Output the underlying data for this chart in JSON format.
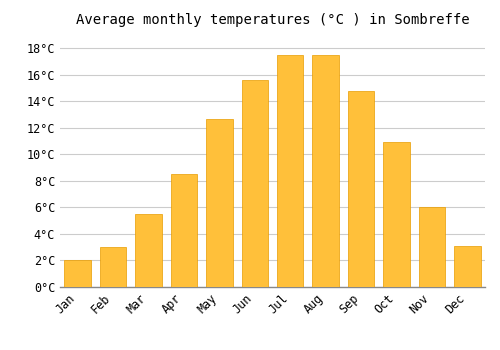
{
  "title": "Average monthly temperatures (°C ) in Sombreffe",
  "months": [
    "Jan",
    "Feb",
    "Mar",
    "Apr",
    "May",
    "Jun",
    "Jul",
    "Aug",
    "Sep",
    "Oct",
    "Nov",
    "Dec"
  ],
  "values": [
    2.0,
    3.0,
    5.5,
    8.5,
    12.7,
    15.6,
    17.5,
    17.5,
    14.8,
    10.9,
    6.0,
    3.1
  ],
  "bar_color": "#FFC03A",
  "bar_edge_color": "#E89C00",
  "background_color": "#FFFFFF",
  "plot_bg_color": "#FFFFFF",
  "grid_color": "#CCCCCC",
  "ylim": [
    0,
    19
  ],
  "yticks": [
    0,
    2,
    4,
    6,
    8,
    10,
    12,
    14,
    16,
    18
  ],
  "title_fontsize": 10,
  "tick_fontsize": 8.5,
  "tick_font_family": "monospace",
  "bar_width": 0.75
}
